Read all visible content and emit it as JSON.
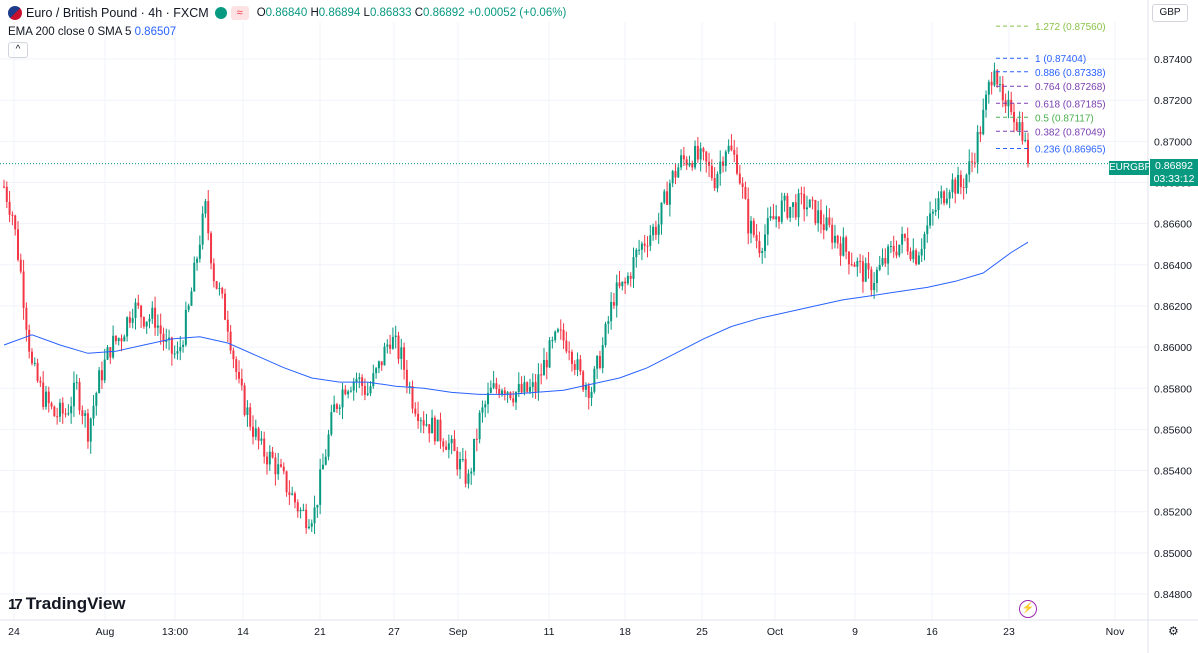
{
  "header": {
    "symbol": "Euro / British Pound · 4h · FXCM",
    "o_label": "O",
    "o": "0.86840",
    "h_label": "H",
    "h": "0.86894",
    "l_label": "L",
    "l": "0.86833",
    "c_label": "C",
    "c": "0.86892",
    "change": "+0.00052 (+0.06%)",
    "wave_icon": "≈"
  },
  "indicator": {
    "label": "EMA 200 close 0 SMA 5",
    "value": "0.86507"
  },
  "collapse_icon": "^",
  "currency": "GBP",
  "last_price": {
    "symbol": "EURGBP",
    "price": "0.86892",
    "countdown": "03:33:12"
  },
  "branding": {
    "logo_mark": "17",
    "logo_text": "TradingView"
  },
  "colors": {
    "up": "#089981",
    "down": "#f23645",
    "ema": "#2962ff",
    "grid": "#f0f3fa"
  },
  "chart_data": {
    "type": "candlestick",
    "title": "Euro / British Pound · 4h · FXCM",
    "ylim": [
      0.8475,
      0.877
    ],
    "y_ticks": [
      "0.87400",
      "0.87200",
      "0.87000",
      "0.86800",
      "0.86600",
      "0.86400",
      "0.86200",
      "0.86000",
      "0.85800",
      "0.85600",
      "0.85400",
      "0.85200",
      "0.85000",
      "0.84800"
    ],
    "x_ticks": [
      "24",
      "Aug",
      "13:00",
      "14",
      "21",
      "27",
      "Sep",
      "11",
      "18",
      "25",
      "Oct",
      "9",
      "16",
      "23",
      "Nov"
    ],
    "trend": [
      [
        0,
        0.8678
      ],
      [
        3,
        0.8665
      ],
      [
        6,
        0.8636
      ],
      [
        10,
        0.859
      ],
      [
        14,
        0.8576
      ],
      [
        18,
        0.8567
      ],
      [
        22,
        0.8568
      ],
      [
        26,
        0.858
      ],
      [
        30,
        0.856
      ],
      [
        34,
        0.8584
      ],
      [
        38,
        0.86
      ],
      [
        42,
        0.8606
      ],
      [
        46,
        0.862
      ],
      [
        50,
        0.8615
      ],
      [
        54,
        0.8614
      ],
      [
        58,
        0.86
      ],
      [
        62,
        0.8595
      ],
      [
        66,
        0.8618
      ],
      [
        70,
        0.8653
      ],
      [
        72,
        0.8667
      ],
      [
        75,
        0.8635
      ],
      [
        80,
        0.8612
      ],
      [
        84,
        0.858
      ],
      [
        88,
        0.8564
      ],
      [
        92,
        0.855
      ],
      [
        96,
        0.8545
      ],
      [
        100,
        0.8535
      ],
      [
        104,
        0.8525
      ],
      [
        106,
        0.852
      ],
      [
        108,
        0.8518
      ],
      [
        111,
        0.852
      ],
      [
        114,
        0.8542
      ],
      [
        118,
        0.857
      ],
      [
        122,
        0.8582
      ],
      [
        126,
        0.8585
      ],
      [
        130,
        0.8578
      ],
      [
        134,
        0.859
      ],
      [
        138,
        0.8605
      ],
      [
        142,
        0.8595
      ],
      [
        146,
        0.8575
      ],
      [
        150,
        0.8565
      ],
      [
        154,
        0.856
      ],
      [
        158,
        0.8555
      ],
      [
        162,
        0.8545
      ],
      [
        166,
        0.8535
      ],
      [
        170,
        0.8565
      ],
      [
        174,
        0.8578
      ],
      [
        178,
        0.8582
      ],
      [
        182,
        0.8578
      ],
      [
        186,
        0.8578
      ],
      [
        190,
        0.858
      ],
      [
        194,
        0.8595
      ],
      [
        198,
        0.8605
      ],
      [
        202,
        0.8602
      ],
      [
        206,
        0.8585
      ],
      [
        210,
        0.858
      ],
      [
        214,
        0.86
      ],
      [
        218,
        0.8625
      ],
      [
        222,
        0.863
      ],
      [
        226,
        0.8645
      ],
      [
        230,
        0.8654
      ],
      [
        234,
        0.866
      ],
      [
        238,
        0.868
      ],
      [
        242,
        0.869
      ],
      [
        246,
        0.8693
      ],
      [
        250,
        0.869
      ],
      [
        254,
        0.8682
      ],
      [
        258,
        0.8698
      ],
      [
        262,
        0.869
      ],
      [
        266,
        0.866
      ],
      [
        270,
        0.865
      ],
      [
        274,
        0.866
      ],
      [
        278,
        0.8668
      ],
      [
        282,
        0.8668
      ],
      [
        286,
        0.867
      ],
      [
        290,
        0.8665
      ],
      [
        294,
        0.8658
      ],
      [
        298,
        0.8652
      ],
      [
        302,
        0.8645
      ],
      [
        306,
        0.8638
      ],
      [
        310,
        0.8632
      ],
      [
        314,
        0.864
      ],
      [
        318,
        0.8648
      ],
      [
        322,
        0.8652
      ],
      [
        326,
        0.8645
      ],
      [
        330,
        0.8658
      ],
      [
        334,
        0.867
      ],
      [
        338,
        0.868
      ],
      [
        342,
        0.8678
      ],
      [
        346,
        0.869
      ],
      [
        350,
        0.8712
      ],
      [
        354,
        0.874
      ],
      [
        356,
        0.8722
      ],
      [
        358,
        0.8712
      ],
      [
        360,
        0.8718
      ],
      [
        362,
        0.871
      ],
      [
        364,
        0.8706
      ],
      [
        366,
        0.8689
      ]
    ],
    "ema_curve": [
      [
        0,
        0.8601
      ],
      [
        10,
        0.8606
      ],
      [
        20,
        0.8601
      ],
      [
        30,
        0.8597
      ],
      [
        40,
        0.8598
      ],
      [
        50,
        0.8601
      ],
      [
        60,
        0.8604
      ],
      [
        70,
        0.8605
      ],
      [
        80,
        0.8602
      ],
      [
        90,
        0.8596
      ],
      [
        100,
        0.859
      ],
      [
        110,
        0.8585
      ],
      [
        120,
        0.8583
      ],
      [
        130,
        0.8583
      ],
      [
        140,
        0.8581
      ],
      [
        150,
        0.858
      ],
      [
        160,
        0.8578
      ],
      [
        170,
        0.8577
      ],
      [
        180,
        0.8577
      ],
      [
        190,
        0.8578
      ],
      [
        200,
        0.8579
      ],
      [
        210,
        0.8582
      ],
      [
        220,
        0.8585
      ],
      [
        230,
        0.859
      ],
      [
        240,
        0.8597
      ],
      [
        250,
        0.8604
      ],
      [
        260,
        0.861
      ],
      [
        270,
        0.8614
      ],
      [
        280,
        0.8617
      ],
      [
        290,
        0.862
      ],
      [
        300,
        0.8623
      ],
      [
        310,
        0.8625
      ],
      [
        320,
        0.8627
      ],
      [
        330,
        0.8629
      ],
      [
        340,
        0.8632
      ],
      [
        350,
        0.8636
      ],
      [
        360,
        0.8646
      ],
      [
        366,
        0.8651
      ]
    ],
    "last_index": 366,
    "fibonacci": [
      {
        "ratio": "1.272",
        "price": 0.8756,
        "label": "1.272 (0.87560)",
        "color": "#8bc34a"
      },
      {
        "ratio": "1",
        "price": 0.87404,
        "label": "1 (0.87404)",
        "color": "#2962ff"
      },
      {
        "ratio": "0.886",
        "price": 0.87338,
        "label": "0.886 (0.87338)",
        "color": "#2962ff"
      },
      {
        "ratio": "0.764",
        "price": 0.87268,
        "label": "0.764 (0.87268)",
        "color": "#7b3fb1"
      },
      {
        "ratio": "0.618",
        "price": 0.87185,
        "label": "0.618 (0.87185)",
        "color": "#7b3fb1"
      },
      {
        "ratio": "0.5",
        "price": 0.87117,
        "label": "0.5 (0.87117)",
        "color": "#4caf50"
      },
      {
        "ratio": "0.382",
        "price": 0.87049,
        "label": "0.382 (0.87049)",
        "color": "#7b3fb1"
      },
      {
        "ratio": "0.236",
        "price": 0.86965,
        "label": "0.236 (0.86965)",
        "color": "#2962ff"
      }
    ]
  }
}
